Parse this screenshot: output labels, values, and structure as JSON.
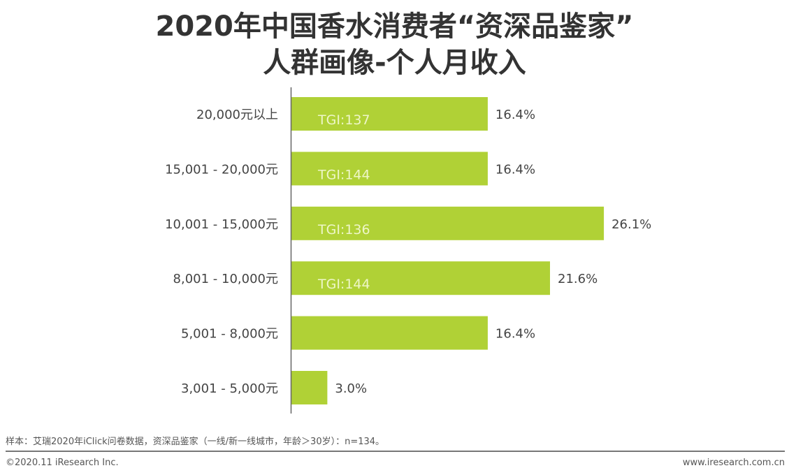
{
  "chart_data": {
    "type": "bar",
    "orientation": "horizontal",
    "title_line1": "2020年中国香水消费者“资深品鉴家”",
    "title_line2": "人群画像-个人月收入",
    "categories": [
      "20,000元以上",
      "15,001 - 20,000元",
      "10,001 - 15,000元",
      "8,001 - 10,000元",
      "5,001 - 8,000元",
      "3,001 - 5,000元"
    ],
    "values": [
      16.4,
      16.4,
      26.1,
      21.6,
      16.4,
      3.0
    ],
    "value_labels": [
      "16.4%",
      "16.4%",
      "26.1%",
      "21.6%",
      "16.4%",
      "3.0%"
    ],
    "bar_annotations": [
      "TGI:137",
      "TGI:144",
      "TGI:136",
      "TGI:144",
      "",
      ""
    ],
    "unit": "%",
    "grid": false,
    "bar_color": "#b0d136"
  },
  "footer": {
    "source": "样本：艾瑞2020年iClick问卷数据，资深品鉴家（一线/新一线城市，年龄＞30岁）：n=134。",
    "copyright": "©2020.11 iResearch Inc.",
    "website": "www.iresearch.com.cn"
  }
}
